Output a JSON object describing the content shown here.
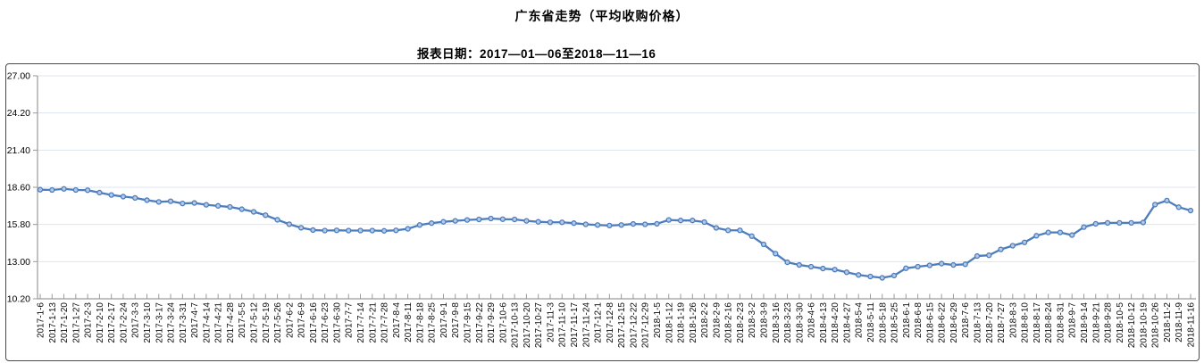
{
  "page": {
    "title": "广东省走势（平均收购价格）",
    "subtitle": "报表日期：2017—01—06至2018—11—16"
  },
  "chart_data": {
    "type": "line",
    "title": "广东省走势（平均收购价格）",
    "subtitle": "报表日期：2017—01—06至2018—11—16",
    "xlabel": "",
    "ylabel": "",
    "ylim": [
      10.2,
      27.0
    ],
    "ytick_labels": [
      "10.20",
      "13.00",
      "15.80",
      "18.60",
      "21.40",
      "24.20",
      "27.00"
    ],
    "grid": true,
    "legend_position": "none",
    "colors": {
      "line": "#4d7dbd",
      "marker_fill": "#b3c9e6",
      "grid": "#dde5f0",
      "axis": "#9a9a9a",
      "frame_border": "#4a4a4a"
    },
    "x": [
      "2017-1-6",
      "2017-1-13",
      "2017-1-20",
      "2017-1-27",
      "2017-2-3",
      "2017-2-10",
      "2017-2-17",
      "2017-2-24",
      "2017-3-3",
      "2017-3-10",
      "2017-3-17",
      "2017-3-24",
      "2017-3-31",
      "2017-4-7",
      "2017-4-14",
      "2017-4-21",
      "2017-4-28",
      "2017-5-5",
      "2017-5-12",
      "2017-5-19",
      "2017-5-26",
      "2017-6-2",
      "2017-6-9",
      "2017-6-16",
      "2017-6-23",
      "2017-6-30",
      "2017-7-7",
      "2017-7-14",
      "2017-7-21",
      "2017-7-28",
      "2017-8-4",
      "2017-8-11",
      "2017-8-18",
      "2017-8-25",
      "2017-9-1",
      "2017-9-8",
      "2017-9-15",
      "2017-9-22",
      "2017-9-29",
      "2017-10-6",
      "2017-10-13",
      "2017-10-20",
      "2017-10-27",
      "2017-11-3",
      "2017-11-10",
      "2017-11-17",
      "2017-11-24",
      "2017-12-1",
      "2017-12-8",
      "2017-12-15",
      "2017-12-22",
      "2017-12-29",
      "2018-1-5",
      "2018-1-12",
      "2018-1-19",
      "2018-1-26",
      "2018-2-2",
      "2018-2-9",
      "2018-2-16",
      "2018-2-23",
      "2018-3-2",
      "2018-3-9",
      "2018-3-16",
      "2018-3-23",
      "2018-3-30",
      "2018-4-6",
      "2018-4-13",
      "2018-4-20",
      "2018-4-27",
      "2018-5-4",
      "2018-5-11",
      "2018-5-18",
      "2018-5-25",
      "2018-6-1",
      "2018-6-8",
      "2018-6-15",
      "2018-6-22",
      "2018-6-29",
      "2018-7-6",
      "2018-7-13",
      "2018-7-20",
      "2018-7-27",
      "2018-8-3",
      "2018-8-10",
      "2018-8-17",
      "2018-8-24",
      "2018-8-31",
      "2018-9-7",
      "2018-9-14",
      "2018-9-21",
      "2018-9-28",
      "2018-10-5",
      "2018-10-12",
      "2018-10-19",
      "2018-10-26",
      "2018-11-2",
      "2018-11-9",
      "2018-11-16"
    ],
    "series": [
      {
        "name": "平均收购价格",
        "values": [
          18.42,
          18.4,
          18.48,
          18.4,
          18.38,
          18.2,
          18.02,
          17.9,
          17.8,
          17.63,
          17.5,
          17.55,
          17.38,
          17.42,
          17.28,
          17.2,
          17.12,
          16.95,
          16.75,
          16.5,
          16.15,
          15.82,
          15.55,
          15.38,
          15.34,
          15.36,
          15.34,
          15.34,
          15.34,
          15.32,
          15.36,
          15.47,
          15.76,
          15.9,
          16.0,
          16.07,
          16.14,
          16.18,
          16.25,
          16.2,
          16.18,
          16.07,
          16.0,
          15.96,
          15.96,
          15.9,
          15.81,
          15.76,
          15.72,
          15.76,
          15.84,
          15.81,
          15.85,
          16.14,
          16.1,
          16.1,
          15.98,
          15.54,
          15.36,
          15.36,
          14.92,
          14.3,
          13.6,
          12.95,
          12.75,
          12.62,
          12.48,
          12.4,
          12.2,
          12.0,
          11.88,
          11.78,
          11.95,
          12.5,
          12.62,
          12.72,
          12.85,
          12.75,
          12.8,
          13.42,
          13.48,
          13.92,
          14.2,
          14.45,
          14.95,
          15.2,
          15.2,
          15.0,
          15.6,
          15.85,
          15.92,
          15.92,
          15.92,
          15.95,
          17.3,
          17.6,
          17.1,
          16.85
        ]
      }
    ]
  }
}
